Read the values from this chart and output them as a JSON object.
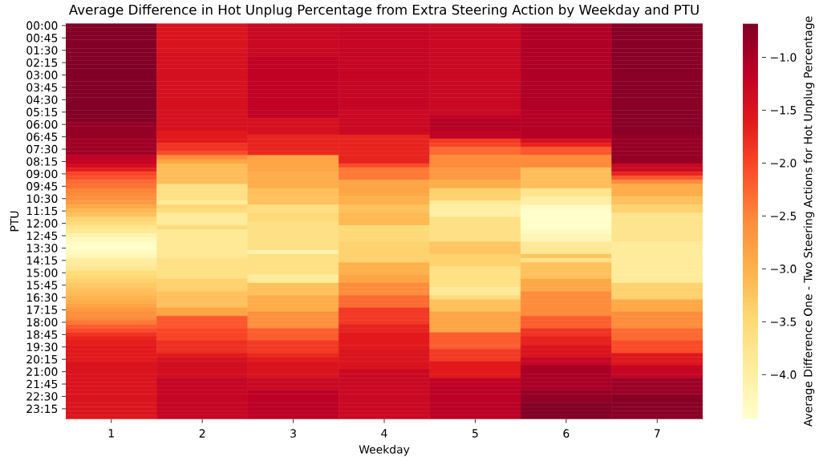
{
  "chart_data": {
    "type": "heatmap",
    "title": "Average Difference in Hot Unplug Percentage from Extra Steering Action by Weekday and PTU",
    "xlabel": "Weekday",
    "ylabel": "PTU",
    "clabel": "Average Difference One - Two Steering Actions for Hot Unplug Percentage",
    "categories": [
      "1",
      "2",
      "3",
      "4",
      "5",
      "6",
      "7"
    ],
    "y_categories": [
      "00:00",
      null,
      null,
      "00:45",
      null,
      null,
      "01:30",
      null,
      null,
      "02:15",
      null,
      null,
      "03:00",
      null,
      null,
      "03:45",
      null,
      null,
      "04:30",
      null,
      null,
      "05:15",
      null,
      null,
      "06:00",
      null,
      null,
      "06:45",
      null,
      null,
      "07:30",
      null,
      null,
      "08:15",
      null,
      null,
      "09:00",
      null,
      null,
      "09:45",
      null,
      null,
      "10:30",
      null,
      null,
      "11:15",
      null,
      null,
      "12:00",
      null,
      null,
      "12:45",
      null,
      null,
      "13:30",
      null,
      null,
      "14:15",
      null,
      null,
      "15:00",
      null,
      null,
      "15:45",
      null,
      null,
      "16:30",
      null,
      null,
      "17:15",
      null,
      null,
      "18:00",
      null,
      null,
      "18:45",
      null,
      null,
      "19:30",
      null,
      null,
      "20:15",
      null,
      null,
      "21:00",
      null,
      null,
      "21:45",
      null,
      null,
      "22:30",
      null,
      null,
      "23:15",
      null,
      null
    ],
    "cells": [
      [
        -0.7,
        -1.5,
        -1.3,
        -1.25,
        -1.3,
        -1.05,
        -0.75
      ],
      [
        -0.7,
        -1.5,
        -1.3,
        -1.25,
        -1.3,
        -1.05,
        -0.75
      ],
      [
        -0.7,
        -1.5,
        -1.3,
        -1.25,
        -1.3,
        -1.05,
        -0.75
      ],
      [
        -0.7,
        -1.5,
        -1.3,
        -1.25,
        -1.3,
        -1.05,
        -0.75
      ],
      [
        -0.7,
        -1.5,
        -1.3,
        -1.25,
        -1.3,
        -1.05,
        -0.75
      ],
      [
        -0.7,
        -1.5,
        -1.3,
        -1.25,
        -1.3,
        -1.05,
        -0.75
      ],
      [
        -0.7,
        -1.5,
        -1.3,
        -1.25,
        -1.3,
        -1.05,
        -0.75
      ],
      [
        -0.7,
        -1.45,
        -1.3,
        -1.25,
        -1.3,
        -1.05,
        -0.75
      ],
      [
        -0.7,
        -1.45,
        -1.2,
        -1.25,
        -1.3,
        -1.05,
        -0.75
      ],
      [
        -0.7,
        -1.45,
        -1.2,
        -1.25,
        -1.3,
        -1.05,
        -0.75
      ],
      [
        -0.68,
        -1.45,
        -1.2,
        -1.25,
        -1.3,
        -1.05,
        -0.75
      ],
      [
        -0.7,
        -1.45,
        -1.2,
        -1.25,
        -1.3,
        -1.05,
        -0.75
      ],
      [
        -0.7,
        -1.45,
        -1.2,
        -1.25,
        -1.3,
        -1.05,
        -0.75
      ],
      [
        -0.7,
        -1.45,
        -1.2,
        -1.25,
        -1.3,
        -1.05,
        -0.75
      ],
      [
        -0.7,
        -1.45,
        -1.2,
        -1.25,
        -1.3,
        -1.05,
        -0.75
      ],
      [
        -0.7,
        -1.45,
        -1.2,
        -1.25,
        -1.3,
        -1.05,
        -0.75
      ],
      [
        -0.7,
        -1.45,
        -1.2,
        -1.25,
        -1.3,
        -1.05,
        -0.75
      ],
      [
        -0.7,
        -1.45,
        -1.2,
        -1.25,
        -1.3,
        -1.05,
        -0.75
      ],
      [
        -0.7,
        -1.45,
        -1.2,
        -1.25,
        -1.3,
        -1.05,
        -0.75
      ],
      [
        -0.7,
        -1.45,
        -1.2,
        -1.25,
        -1.3,
        -1.05,
        -0.75
      ],
      [
        -0.7,
        -1.45,
        -1.2,
        -1.25,
        -1.3,
        -1.05,
        -0.75
      ],
      [
        -0.7,
        -1.45,
        -1.2,
        -1.3,
        -1.3,
        -1.1,
        -0.75
      ],
      [
        -0.7,
        -1.45,
        -1.2,
        -1.3,
        -1.2,
        -1.1,
        -0.75
      ],
      [
        -0.7,
        -1.45,
        -1.45,
        -1.3,
        -1.1,
        -1.1,
        -0.75
      ],
      [
        -0.85,
        -1.45,
        -1.45,
        -1.3,
        -1.1,
        -1.1,
        -0.75
      ],
      [
        -0.85,
        -1.45,
        -1.45,
        -1.3,
        -1.1,
        -1.1,
        -0.75
      ],
      [
        -0.85,
        -1.6,
        -1.45,
        -1.3,
        -1.2,
        -1.1,
        -0.75
      ],
      [
        -0.85,
        -1.6,
        -1.7,
        -1.7,
        -1.2,
        -1.1,
        -0.85
      ],
      [
        -0.92,
        -1.6,
        -1.7,
        -1.7,
        -1.9,
        -1.45,
        -0.85
      ],
      [
        -0.92,
        -1.85,
        -1.7,
        -1.7,
        -2.0,
        -1.7,
        -0.85
      ],
      [
        -0.92,
        -1.85,
        -1.7,
        -1.7,
        -2.3,
        -2.15,
        -0.85
      ],
      [
        -0.92,
        -2.05,
        -1.75,
        -1.7,
        -2.3,
        -2.15,
        -0.85
      ],
      [
        -1.2,
        -2.55,
        -2.85,
        -1.7,
        -2.55,
        -2.55,
        -0.85
      ],
      [
        -1.25,
        -2.85,
        -2.85,
        -1.7,
        -2.55,
        -2.55,
        -0.85
      ],
      [
        -1.4,
        -3.15,
        -2.85,
        -2.05,
        -2.55,
        -2.55,
        -1.3
      ],
      [
        -1.65,
        -3.15,
        -2.85,
        -2.4,
        -2.7,
        -3.15,
        -1.3
      ],
      [
        -2.0,
        -3.15,
        -2.95,
        -2.4,
        -2.7,
        -3.15,
        -1.7
      ],
      [
        -2.1,
        -3.15,
        -2.95,
        -2.4,
        -2.7,
        -3.15,
        -2.15
      ],
      [
        -2.3,
        -3.15,
        -2.95,
        -2.85,
        -2.95,
        -3.15,
        -2.55
      ],
      [
        -2.35,
        -3.65,
        -2.95,
        -2.85,
        -2.95,
        -3.15,
        -2.95
      ],
      [
        -2.5,
        -3.65,
        -3.2,
        -2.85,
        -3.4,
        -3.75,
        -2.95
      ],
      [
        -2.55,
        -3.65,
        -3.2,
        -2.9,
        -3.4,
        -3.75,
        -2.95
      ],
      [
        -2.6,
        -3.65,
        -3.2,
        -3.0,
        -3.4,
        -4.0,
        -3.2
      ],
      [
        -2.7,
        -3.9,
        -3.2,
        -3.0,
        -3.85,
        -4.0,
        -3.2
      ],
      [
        -2.9,
        -3.45,
        -3.6,
        -3.2,
        -4.0,
        -4.3,
        -3.4
      ],
      [
        -3.1,
        -3.55,
        -3.6,
        -3.2,
        -4.0,
        -4.38,
        -3.4
      ],
      [
        -3.2,
        -3.9,
        -3.5,
        -3.1,
        -4.0,
        -4.4,
        -3.75
      ],
      [
        -3.45,
        -3.9,
        -3.5,
        -3.1,
        -3.65,
        -4.42,
        -3.75
      ],
      [
        -3.55,
        -3.9,
        -3.65,
        -3.1,
        -3.65,
        -4.4,
        -3.75
      ],
      [
        -3.75,
        -3.5,
        -3.65,
        -3.5,
        -3.65,
        -4.38,
        -3.75
      ],
      [
        -3.85,
        -3.85,
        -3.65,
        -3.5,
        -3.65,
        -4.3,
        -3.75
      ],
      [
        -4.1,
        -3.85,
        -3.65,
        -3.5,
        -3.65,
        -4.15,
        -3.75
      ],
      [
        -4.25,
        -3.85,
        -3.65,
        -3.5,
        -3.65,
        -4.15,
        -3.75
      ],
      [
        -4.35,
        -3.85,
        -3.65,
        -3.4,
        -3.25,
        -3.85,
        -3.9
      ],
      [
        -4.4,
        -3.85,
        -3.65,
        -3.4,
        -3.25,
        -3.85,
        -3.9
      ],
      [
        -4.3,
        -3.85,
        -4.1,
        -3.4,
        -3.25,
        -3.85,
        -3.9
      ],
      [
        -4.2,
        -3.85,
        -3.65,
        -3.4,
        -3.4,
        -3.25,
        -3.9
      ],
      [
        -3.95,
        -3.65,
        -3.65,
        -3.4,
        -3.4,
        -3.7,
        -3.9
      ],
      [
        -3.9,
        -3.65,
        -3.65,
        -3.0,
        -3.4,
        -3.2,
        -3.9
      ],
      [
        -3.8,
        -3.65,
        -3.65,
        -3.0,
        -3.65,
        -3.2,
        -3.9
      ],
      [
        -3.55,
        -3.65,
        -3.65,
        -3.0,
        -3.65,
        -3.2,
        -3.9
      ],
      [
        -3.5,
        -3.65,
        -3.9,
        -2.85,
        -3.65,
        -3.2,
        -3.9
      ],
      [
        -3.4,
        -3.4,
        -3.9,
        -2.85,
        -3.65,
        -2.9,
        -3.9
      ],
      [
        -3.3,
        -3.4,
        -3.2,
        -2.55,
        -3.65,
        -2.9,
        -3.4
      ],
      [
        -3.2,
        -3.4,
        -3.2,
        -2.55,
        -3.85,
        -2.9,
        -3.4
      ],
      [
        -3.15,
        -3.2,
        -3.2,
        -2.55,
        -3.85,
        -2.55,
        -3.4
      ],
      [
        -3.05,
        -3.2,
        -2.95,
        -2.3,
        -3.55,
        -2.55,
        -3.4
      ],
      [
        -2.95,
        -3.2,
        -2.95,
        -2.3,
        -3.2,
        -2.55,
        -2.9
      ],
      [
        -2.85,
        -3.2,
        -2.95,
        -2.3,
        -3.2,
        -2.55,
        -2.9
      ],
      [
        -2.7,
        -2.85,
        -2.95,
        -1.9,
        -3.2,
        -2.55,
        -2.9
      ],
      [
        -2.6,
        -2.85,
        -2.6,
        -1.9,
        -2.85,
        -2.55,
        -2.55
      ],
      [
        -2.55,
        -2.15,
        -2.6,
        -1.9,
        -2.85,
        -2.2,
        -2.55
      ],
      [
        -2.4,
        -2.15,
        -2.6,
        -1.9,
        -2.85,
        -2.2,
        -2.55
      ],
      [
        -2.2,
        -2.15,
        -2.6,
        -1.7,
        -2.85,
        -2.2,
        -2.55
      ],
      [
        -2.05,
        -2.0,
        -2.2,
        -1.7,
        -2.85,
        -1.85,
        -2.3
      ],
      [
        -1.85,
        -2.0,
        -2.2,
        -1.6,
        -2.2,
        -1.85,
        -2.3
      ],
      [
        -1.7,
        -2.0,
        -2.2,
        -1.6,
        -2.2,
        -1.7,
        -2.3
      ],
      [
        -1.65,
        -1.8,
        -1.9,
        -1.6,
        -2.2,
        -1.7,
        -2.05
      ],
      [
        -1.6,
        -1.8,
        -1.9,
        -1.6,
        -2.2,
        -1.5,
        -2.05
      ],
      [
        -1.6,
        -1.8,
        -1.9,
        -1.5,
        -1.9,
        -1.5,
        -2.05
      ],
      [
        -1.6,
        -1.6,
        -1.75,
        -1.5,
        -1.9,
        -1.5,
        -1.55
      ],
      [
        -1.6,
        -1.45,
        -1.6,
        -1.5,
        -1.9,
        -1.25,
        -1.55
      ],
      [
        -1.5,
        -1.4,
        -1.5,
        -1.5,
        -1.6,
        -1.25,
        -1.55
      ],
      [
        -1.5,
        -1.4,
        -1.5,
        -1.5,
        -1.6,
        -1.0,
        -1.25
      ],
      [
        -1.5,
        -1.4,
        -1.5,
        -1.3,
        -1.6,
        -1.0,
        -1.25
      ],
      [
        -1.5,
        -1.4,
        -1.5,
        -1.3,
        -1.6,
        -1.0,
        -1.25
      ],
      [
        -1.5,
        -1.25,
        -1.3,
        -1.3,
        -1.2,
        -1.0,
        -0.9
      ],
      [
        -1.5,
        -1.25,
        -1.3,
        -1.3,
        -1.2,
        -1.0,
        -0.9
      ],
      [
        -1.5,
        -1.25,
        -1.3,
        -1.3,
        -1.15,
        -1.0,
        -0.9
      ],
      [
        -1.5,
        -1.25,
        -1.15,
        -1.3,
        -1.15,
        -0.85,
        -0.9
      ],
      [
        -1.5,
        -1.25,
        -1.15,
        -1.3,
        -1.15,
        -0.85,
        -0.75
      ],
      [
        -1.5,
        -1.25,
        -1.15,
        -1.3,
        -1.15,
        -0.85,
        -0.75
      ],
      [
        -1.5,
        -1.25,
        -1.15,
        -1.3,
        -1.15,
        -0.7,
        -0.75
      ],
      [
        -1.5,
        -1.25,
        -1.15,
        -1.3,
        -1.15,
        -0.7,
        -0.75
      ],
      [
        -1.5,
        -1.25,
        -1.15,
        -1.3,
        -1.15,
        -0.7,
        -0.75
      ],
      [
        -1.55,
        -1.25,
        -1.15,
        -1.3,
        -1.15,
        -0.7,
        -0.75
      ]
    ],
    "clim": [
      -4.42,
      -0.68
    ],
    "cticks": [
      {
        "value": -4.0,
        "label": "−4.0"
      },
      {
        "value": -3.5,
        "label": "−3.5"
      },
      {
        "value": -3.0,
        "label": "−3.0"
      },
      {
        "value": -2.5,
        "label": "−2.5"
      },
      {
        "value": -2.0,
        "label": "−2.0"
      },
      {
        "value": -1.5,
        "label": "−1.5"
      },
      {
        "value": -1.0,
        "label": "−1.0"
      }
    ]
  }
}
